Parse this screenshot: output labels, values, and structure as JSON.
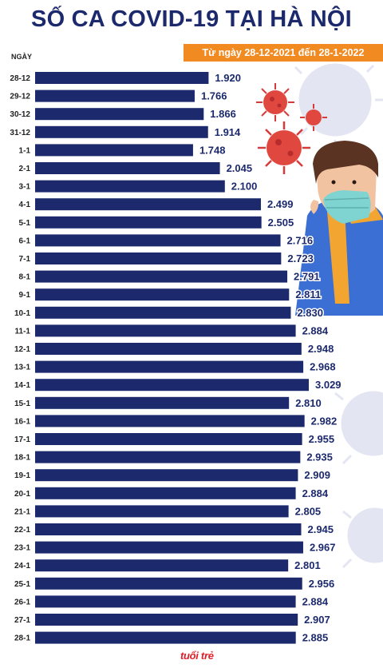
{
  "header": {
    "title": "SỐ CA COVID-19 TẠI HÀ NỘI",
    "subtitle": "Từ ngày 28-12-2021 đến 28-1-2022",
    "axis_heading": "NGÀY"
  },
  "brand": {
    "logo_text": "tuổi trẻ"
  },
  "colors": {
    "bar": "#1c2a6d",
    "title": "#1c2a6d",
    "accent": "#f28a22",
    "logo": "#e21e26"
  },
  "chart_data": {
    "type": "bar",
    "orientation": "horizontal",
    "categories": [
      "28-12",
      "29-12",
      "30-12",
      "31-12",
      "1-1",
      "2-1",
      "3-1",
      "4-1",
      "5-1",
      "6-1",
      "7-1",
      "8-1",
      "9-1",
      "10-1",
      "11-1",
      "12-1",
      "13-1",
      "14-1",
      "15-1",
      "16-1",
      "17-1",
      "18-1",
      "19-1",
      "20-1",
      "21-1",
      "22-1",
      "23-1",
      "24-1",
      "25-1",
      "26-1",
      "27-1",
      "28-1"
    ],
    "values": [
      1920,
      1766,
      1866,
      1914,
      1748,
      2045,
      2100,
      2499,
      2505,
      2716,
      2723,
      2791,
      2811,
      2830,
      2884,
      2948,
      2968,
      3029,
      2810,
      2982,
      2955,
      2935,
      2909,
      2884,
      2805,
      2945,
      2967,
      2801,
      2956,
      2884,
      2907,
      2885
    ],
    "labels": [
      "1.920",
      "1.766",
      "1.866",
      "1.914",
      "1.748",
      "2.045",
      "2.100",
      "2.499",
      "2.505",
      "2.716",
      "2.723",
      "2.791",
      "2.811",
      "2.830",
      "2.884",
      "2.948",
      "2.968",
      "3.029",
      "2.810",
      "2.982",
      "2.955",
      "2.935",
      "2.909",
      "2.884",
      "2.805",
      "2.945",
      "2.967",
      "2.801",
      "2.956",
      "2.884",
      "2.907",
      "2.885"
    ],
    "xlim": [
      0,
      3029
    ],
    "grid": false,
    "legend": "none"
  }
}
